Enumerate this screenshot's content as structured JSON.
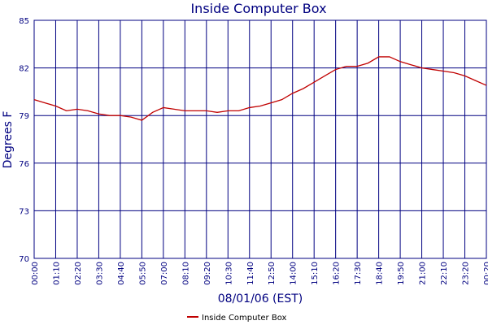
{
  "chart_data": {
    "type": "line",
    "title": "Inside Computer Box",
    "x_label": "08/01/06 (EST)",
    "y_label": "Degrees F",
    "categories": [
      "00:00",
      null,
      "01:10",
      null,
      "02:20",
      null,
      "03:30",
      null,
      "04:40",
      null,
      "05:50",
      null,
      "07:00",
      null,
      "08:10",
      null,
      "09:20",
      null,
      "10:30",
      null,
      "11:40",
      null,
      "12:50",
      null,
      "14:00",
      null,
      "15:10",
      null,
      "16:20",
      null,
      "17:30",
      null,
      "18:40",
      null,
      "19:50",
      null,
      "21:00",
      null,
      "22:10",
      null,
      "23:20",
      null,
      "00:20"
    ],
    "series": [
      {
        "name": "Inside Computer Box",
        "color": "#c00000",
        "values": [
          80.0,
          79.8,
          79.6,
          79.3,
          79.4,
          79.3,
          79.1,
          79.0,
          79.0,
          78.9,
          78.7,
          79.2,
          79.5,
          79.4,
          79.3,
          79.3,
          79.3,
          79.2,
          79.3,
          79.3,
          79.5,
          79.6,
          79.8,
          80.0,
          80.4,
          80.7,
          81.1,
          81.5,
          81.9,
          82.1,
          82.1,
          82.3,
          82.7,
          82.7,
          82.4,
          82.2,
          82.0,
          81.9,
          81.8,
          81.7,
          81.5,
          81.2,
          80.9
        ]
      }
    ],
    "ylim": [
      70,
      85
    ],
    "yticks": [
      70,
      73,
      76,
      79,
      82,
      85
    ],
    "grid": true,
    "legend": "bottom"
  }
}
